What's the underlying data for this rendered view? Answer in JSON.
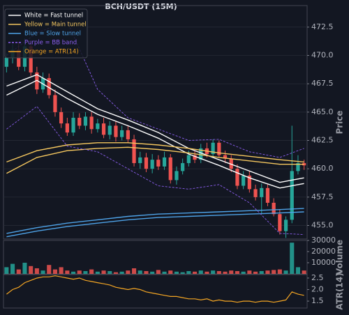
{
  "chart_data": [
    {
      "type": "candlestick",
      "title": "BCH/USDT (15M)",
      "y_label": "Price",
      "xlim": [
        -0.5,
        49.5
      ],
      "ylim": [
        453.8,
        474.4
      ],
      "yticks": [
        {
          "value": 455,
          "label": "455.0"
        },
        {
          "value": 457.5,
          "label": "457.5"
        },
        {
          "value": 460,
          "label": "460.0"
        },
        {
          "value": 462.5,
          "label": "462.5"
        },
        {
          "value": 465,
          "label": "465.0"
        },
        {
          "value": 467.5,
          "label": "467.5"
        },
        {
          "value": 470,
          "label": "470.0"
        },
        {
          "value": 472.5,
          "label": "472.5"
        }
      ],
      "grid": true,
      "legend": "upper left",
      "up_color": "#26a69a",
      "down_color": "#ef5350",
      "open": [
        469.0,
        469.8,
        470.5,
        469.0,
        470.8,
        468.5,
        467.0,
        468.0,
        466.5,
        465.0,
        464.0,
        463.2,
        464.5,
        463.8,
        464.6,
        463.5,
        464.0,
        463.0,
        463.8,
        462.8,
        463.4,
        462.6,
        460.5,
        461.0,
        460.0,
        460.8,
        460.2,
        461.0,
        459.0,
        459.8,
        460.5,
        461.2,
        460.8,
        461.8,
        461.3,
        462.3,
        461.2,
        460.9,
        460.0,
        458.5,
        459.4,
        458.2,
        457.5,
        458.3,
        457.0,
        456.0,
        454.5,
        455.5,
        459.8,
        460.5
      ],
      "high": [
        470.2,
        471.0,
        471.2,
        471.5,
        471.3,
        469.0,
        468.5,
        468.4,
        467.0,
        465.4,
        464.5,
        465.0,
        464.9,
        465.0,
        465.0,
        464.4,
        464.5,
        464.2,
        464.2,
        463.8,
        463.8,
        463.0,
        461.5,
        461.4,
        461.3,
        461.2,
        461.5,
        461.3,
        460.2,
        460.9,
        461.6,
        461.6,
        462.2,
        462.3,
        462.6,
        462.5,
        461.6,
        461.2,
        460.4,
        459.8,
        459.8,
        458.6,
        458.7,
        458.6,
        457.4,
        456.4,
        455.8,
        463.8,
        461.2,
        460.8
      ],
      "low": [
        468.5,
        469.3,
        468.7,
        468.6,
        468.2,
        466.6,
        466.7,
        466.2,
        464.6,
        463.6,
        462.9,
        462.9,
        463.5,
        463.4,
        463.1,
        463.2,
        462.7,
        462.6,
        462.4,
        462.5,
        462.3,
        460.2,
        460.0,
        459.7,
        459.6,
        459.9,
        459.9,
        458.7,
        458.6,
        459.5,
        460.2,
        460.5,
        460.5,
        461.0,
        461.0,
        461.0,
        460.5,
        459.7,
        458.2,
        458.2,
        457.9,
        457.2,
        456.0,
        456.7,
        455.8,
        454.2,
        453.9,
        455.2,
        459.5,
        459.9
      ],
      "close": [
        469.8,
        470.5,
        469.0,
        470.8,
        468.5,
        467.0,
        468.0,
        466.5,
        465.0,
        464.0,
        463.2,
        464.5,
        463.8,
        464.6,
        463.5,
        464.0,
        463.0,
        463.8,
        462.8,
        463.4,
        462.6,
        460.5,
        461.0,
        460.0,
        460.8,
        460.2,
        461.0,
        459.0,
        459.8,
        460.5,
        461.2,
        460.8,
        461.8,
        461.3,
        462.3,
        461.2,
        460.9,
        460.0,
        458.5,
        459.4,
        458.2,
        457.5,
        458.3,
        457.0,
        456.0,
        454.5,
        455.5,
        459.8,
        460.5,
        460.3
      ],
      "bands": [
        {
          "name": "White = Fast tunnel",
          "color": "#ffffff",
          "dashed": false,
          "x": [
            0,
            5,
            10,
            15,
            20,
            25,
            30,
            35,
            40,
            45,
            49
          ],
          "upper": [
            467.3,
            468.3,
            466.8,
            465.3,
            464.3,
            463.2,
            461.8,
            460.8,
            459.8,
            458.8,
            459.2
          ],
          "lower": [
            466.5,
            467.8,
            466.2,
            464.8,
            463.8,
            462.7,
            461.3,
            460.3,
            459.2,
            458.3,
            458.7
          ]
        },
        {
          "name": "Yellow = Main tunnel",
          "color": "#f6c85f",
          "dashed": false,
          "x": [
            0,
            5,
            10,
            15,
            20,
            25,
            30,
            35,
            40,
            45,
            49
          ],
          "upper": [
            460.6,
            461.6,
            462.1,
            462.3,
            462.3,
            462.1,
            461.8,
            461.4,
            461.1,
            460.8,
            460.6
          ],
          "lower": [
            459.6,
            461.0,
            461.6,
            461.8,
            461.9,
            461.7,
            461.4,
            461.0,
            460.7,
            460.4,
            460.4
          ]
        },
        {
          "name": "Blue = Slow tunnel",
          "color": "#4ea3e8",
          "dashed": false,
          "x": [
            0,
            5,
            10,
            15,
            20,
            25,
            30,
            35,
            40,
            45,
            49
          ],
          "upper": [
            454.3,
            454.8,
            455.2,
            455.5,
            455.8,
            456.0,
            456.1,
            456.2,
            456.3,
            456.4,
            456.5
          ],
          "lower": [
            454.0,
            454.5,
            454.9,
            455.2,
            455.5,
            455.7,
            455.8,
            455.9,
            456.0,
            456.1,
            456.2
          ]
        },
        {
          "name": "Purple = BB band",
          "color": "#8c5ff0",
          "dashed": true,
          "x": [
            0,
            5,
            10,
            15,
            20,
            25,
            30,
            35,
            40,
            45,
            49
          ],
          "upper": [
            470.0,
            472.0,
            473.0,
            467.0,
            464.5,
            463.5,
            462.5,
            462.6,
            461.5,
            461.0,
            461.8
          ],
          "lower": [
            463.5,
            465.5,
            462.0,
            461.5,
            460.0,
            458.5,
            458.2,
            458.6,
            457.0,
            454.3,
            454.2
          ]
        }
      ],
      "legend_extra": {
        "name": "Orange = ATR(14)",
        "color": "#f5a623"
      }
    },
    {
      "type": "bar",
      "y_label": "Volume",
      "xlim": [
        -0.5,
        49.5
      ],
      "ylim": [
        0,
        30000
      ],
      "yticks": [
        10000,
        20000,
        30000
      ],
      "values": [
        6000,
        9000,
        4000,
        10000,
        7000,
        5000,
        3000,
        8000,
        4000,
        6000,
        3000,
        2000,
        3000,
        2500,
        4000,
        2000,
        3000,
        2500,
        1500,
        2000,
        3000,
        5000,
        3000,
        2500,
        2000,
        3500,
        2000,
        3000,
        2000,
        1500,
        2500,
        2000,
        3000,
        2000,
        3000,
        2500,
        2000,
        3000,
        2500,
        2000,
        3000,
        2000,
        2500,
        3000,
        3500,
        4000,
        3000,
        28000,
        6000,
        3000
      ]
    },
    {
      "type": "line",
      "y_label": "ATR(14)",
      "xlim": [
        -0.5,
        49.5
      ],
      "ylim": [
        1.2,
        2.65
      ],
      "yticks": [
        1.5,
        {
          "value": 2,
          "label": "2.0"
        },
        2.5
      ],
      "color": "#f5a623",
      "values": [
        1.8,
        2.0,
        2.1,
        2.3,
        2.4,
        2.5,
        2.55,
        2.55,
        2.6,
        2.55,
        2.5,
        2.45,
        2.5,
        2.4,
        2.35,
        2.3,
        2.25,
        2.2,
        2.1,
        2.05,
        2.0,
        2.05,
        2.0,
        1.9,
        1.85,
        1.8,
        1.75,
        1.7,
        1.7,
        1.65,
        1.6,
        1.6,
        1.55,
        1.6,
        1.5,
        1.55,
        1.5,
        1.5,
        1.45,
        1.5,
        1.5,
        1.45,
        1.5,
        1.5,
        1.45,
        1.5,
        1.55,
        1.9,
        1.8,
        1.75
      ]
    }
  ]
}
